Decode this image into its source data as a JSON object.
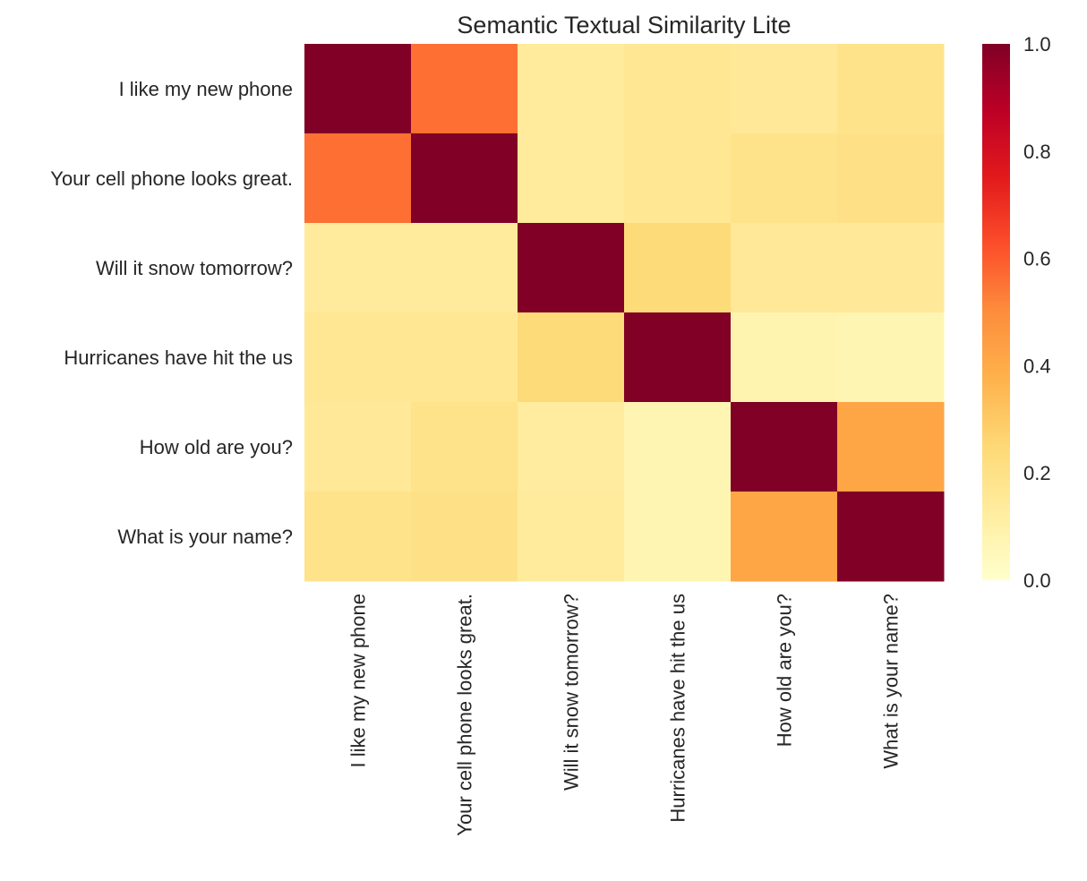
{
  "chart_data": {
    "type": "heatmap",
    "title": "Semantic Textual Similarity Lite",
    "row_labels": [
      "I like my new phone",
      "Your cell phone looks great.",
      "Will it snow tomorrow?",
      "Hurricanes have hit the us",
      "How old are you?",
      "What is your name?"
    ],
    "col_labels": [
      "I like my new phone",
      "Your cell phone looks great.",
      "Will it snow tomorrow?",
      "Hurricanes have hit the us",
      "How old are you?",
      "What is your name?"
    ],
    "values": [
      [
        1.0,
        0.56,
        0.14,
        0.16,
        0.15,
        0.19
      ],
      [
        0.56,
        1.0,
        0.14,
        0.16,
        0.19,
        0.2
      ],
      [
        0.14,
        0.14,
        1.0,
        0.24,
        0.15,
        0.15
      ],
      [
        0.16,
        0.16,
        0.24,
        1.0,
        0.08,
        0.07
      ],
      [
        0.15,
        0.19,
        0.13,
        0.07,
        1.0,
        0.42
      ],
      [
        0.19,
        0.2,
        0.14,
        0.07,
        0.42,
        1.0
      ]
    ],
    "colormap": "YlOrRd",
    "vmin": 0.0,
    "vmax": 1.0,
    "colorbar_ticks": [
      "0.0",
      "0.2",
      "0.4",
      "0.6",
      "0.8",
      "1.0"
    ],
    "colorbar_stops": [
      "#ffffcc",
      "#ffeda0",
      "#fed976",
      "#feb24c",
      "#fd8d3c",
      "#fc4e2a",
      "#e31a1c",
      "#bd0026",
      "#800026"
    ],
    "grid": false,
    "legend": "colorbar-right"
  }
}
